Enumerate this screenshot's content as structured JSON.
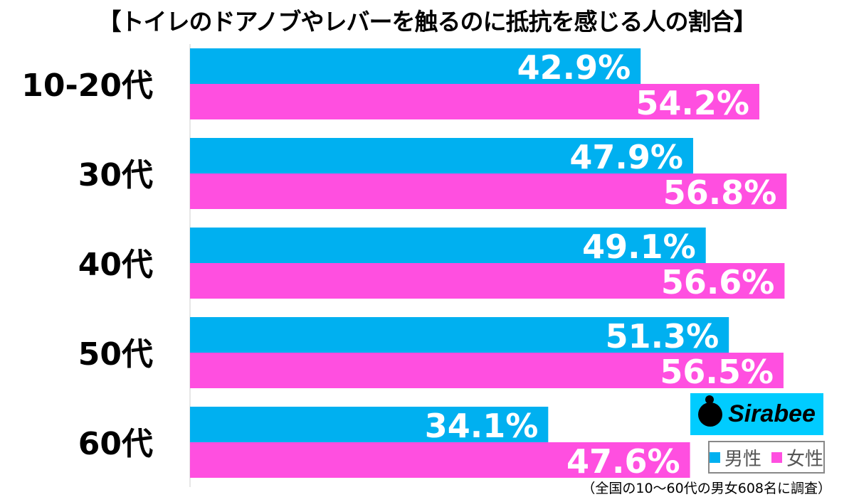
{
  "chart_data": {
    "type": "bar",
    "orientation": "horizontal",
    "title": "【トイレのドアノブやレバーを触るのに抵抗を感じる人の割合】",
    "categories": [
      "10-20代",
      "30代",
      "40代",
      "50代",
      "60代"
    ],
    "series": [
      {
        "name": "男性",
        "color": "#00b0f0",
        "values": [
          42.9,
          47.9,
          49.1,
          51.3,
          34.1
        ]
      },
      {
        "name": "女性",
        "color": "#ff4fe0",
        "values": [
          54.2,
          56.8,
          56.6,
          56.5,
          47.6
        ]
      }
    ],
    "value_suffix": "%",
    "grid": false,
    "legend": "bottom-right",
    "note": "（全国の10～60代の男女608名に調査）",
    "logo": "Sirabee"
  }
}
